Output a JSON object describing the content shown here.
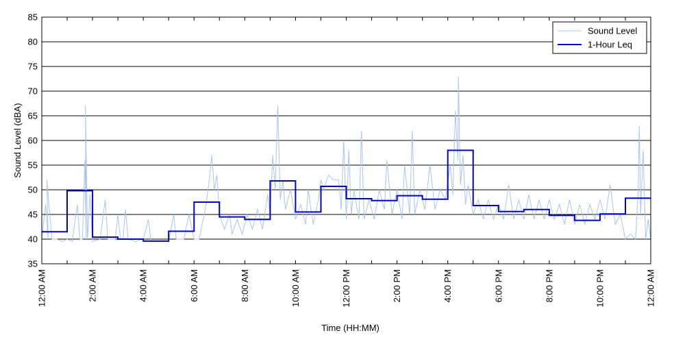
{
  "chart_data": {
    "type": "line",
    "title": "",
    "xlabel": "Time (HH:MM)",
    "ylabel": "Sound Level (dBA)",
    "xlim": [
      0,
      24
    ],
    "ylim": [
      35,
      85
    ],
    "yticks": [
      35,
      40,
      45,
      50,
      55,
      60,
      65,
      70,
      75,
      80,
      85
    ],
    "xticks": [
      {
        "x": 0,
        "label": "12:00 AM"
      },
      {
        "x": 2,
        "label": "2:00 AM"
      },
      {
        "x": 4,
        "label": "4:00 AM"
      },
      {
        "x": 6,
        "label": "6:00 AM"
      },
      {
        "x": 8,
        "label": "8:00 AM"
      },
      {
        "x": 10,
        "label": "10:00 AM"
      },
      {
        "x": 12,
        "label": "12:00 PM"
      },
      {
        "x": 14,
        "label": "2:00 PM"
      },
      {
        "x": 16,
        "label": "4:00 PM"
      },
      {
        "x": 18,
        "label": "6:00 PM"
      },
      {
        "x": 20,
        "label": "8:00 PM"
      },
      {
        "x": 22,
        "label": "10:00 PM"
      },
      {
        "x": 24,
        "label": "12:00 AM"
      }
    ],
    "grid": "horizontal",
    "legend_position": "top-right",
    "series": [
      {
        "name": "Sound Level",
        "color": "#a9c3f2",
        "type": "line",
        "approximate": true,
        "points": [
          [
            0,
            40
          ],
          [
            0.15,
            47
          ],
          [
            0.25,
            40
          ],
          [
            0.2,
            52
          ],
          [
            0.4,
            40
          ],
          [
            0.6,
            40
          ],
          [
            0.8,
            39.5
          ],
          [
            1.0,
            40
          ],
          [
            1.2,
            39.5
          ],
          [
            1.4,
            47
          ],
          [
            1.5,
            40
          ],
          [
            1.6,
            40
          ],
          [
            1.7,
            56
          ],
          [
            1.75,
            40
          ],
          [
            1.72,
            67
          ],
          [
            1.8,
            40
          ],
          [
            1.9,
            49
          ],
          [
            2.0,
            39.5
          ],
          [
            2.3,
            40
          ],
          [
            2.5,
            48
          ],
          [
            2.6,
            40
          ],
          [
            2.9,
            40
          ],
          [
            3.0,
            45
          ],
          [
            3.1,
            40
          ],
          [
            3.2,
            40
          ],
          [
            3.3,
            46
          ],
          [
            3.4,
            40
          ],
          [
            3.7,
            39.5
          ],
          [
            4.0,
            40
          ],
          [
            4.2,
            44
          ],
          [
            4.3,
            39.5
          ],
          [
            4.6,
            39.5
          ],
          [
            5.0,
            39.5
          ],
          [
            5.2,
            45
          ],
          [
            5.3,
            40
          ],
          [
            5.6,
            40
          ],
          [
            5.8,
            45
          ],
          [
            6.0,
            40
          ],
          [
            6.2,
            40
          ],
          [
            6.4,
            45
          ],
          [
            6.5,
            48
          ],
          [
            6.6,
            52
          ],
          [
            6.7,
            57
          ],
          [
            6.8,
            50
          ],
          [
            6.9,
            53
          ],
          [
            7.0,
            45
          ],
          [
            7.2,
            42
          ],
          [
            7.4,
            45
          ],
          [
            7.5,
            41
          ],
          [
            7.7,
            44
          ],
          [
            7.9,
            41
          ],
          [
            8.1,
            45
          ],
          [
            8.3,
            42
          ],
          [
            8.5,
            46
          ],
          [
            8.7,
            42
          ],
          [
            8.9,
            49
          ],
          [
            9.0,
            45
          ],
          [
            9.1,
            57
          ],
          [
            9.2,
            50
          ],
          [
            9.3,
            67
          ],
          [
            9.4,
            48
          ],
          [
            9.5,
            52
          ],
          [
            9.6,
            46
          ],
          [
            9.8,
            50
          ],
          [
            10.0,
            44
          ],
          [
            10.2,
            47
          ],
          [
            10.4,
            43
          ],
          [
            10.5,
            50
          ],
          [
            10.7,
            43
          ],
          [
            10.9,
            48
          ],
          [
            11.0,
            52
          ],
          [
            11.1,
            50
          ],
          [
            11.3,
            53
          ],
          [
            11.5,
            52
          ],
          [
            11.7,
            52
          ],
          [
            11.8,
            46
          ],
          [
            11.9,
            60
          ],
          [
            12.0,
            44
          ],
          [
            12.1,
            58
          ],
          [
            12.2,
            45
          ],
          [
            12.3,
            50
          ],
          [
            12.5,
            44
          ],
          [
            12.6,
            62
          ],
          [
            12.7,
            44
          ],
          [
            12.9,
            48
          ],
          [
            13.1,
            44
          ],
          [
            13.3,
            50
          ],
          [
            13.5,
            46
          ],
          [
            13.6,
            56
          ],
          [
            13.8,
            45
          ],
          [
            14.0,
            50
          ],
          [
            14.2,
            44
          ],
          [
            14.3,
            55
          ],
          [
            14.5,
            45
          ],
          [
            14.6,
            62
          ],
          [
            14.7,
            45
          ],
          [
            14.9,
            50
          ],
          [
            15.1,
            46
          ],
          [
            15.3,
            55
          ],
          [
            15.5,
            46
          ],
          [
            15.7,
            50
          ],
          [
            15.9,
            48
          ],
          [
            16.1,
            55
          ],
          [
            16.2,
            49
          ],
          [
            16.3,
            66
          ],
          [
            16.4,
            56
          ],
          [
            16.42,
            73
          ],
          [
            16.5,
            51
          ],
          [
            16.6,
            57
          ],
          [
            16.7,
            47
          ],
          [
            16.8,
            51
          ],
          [
            17.0,
            45
          ],
          [
            17.2,
            48
          ],
          [
            17.4,
            44
          ],
          [
            17.6,
            48
          ],
          [
            17.8,
            44
          ],
          [
            18.0,
            47
          ],
          [
            18.2,
            44
          ],
          [
            18.4,
            51
          ],
          [
            18.6,
            44
          ],
          [
            18.8,
            48
          ],
          [
            19.0,
            44
          ],
          [
            19.2,
            49
          ],
          [
            19.4,
            44
          ],
          [
            19.6,
            48
          ],
          [
            19.8,
            44
          ],
          [
            20.0,
            48
          ],
          [
            20.2,
            44
          ],
          [
            20.4,
            47
          ],
          [
            20.6,
            43
          ],
          [
            20.8,
            48
          ],
          [
            21.0,
            43
          ],
          [
            21.2,
            47
          ],
          [
            21.4,
            43
          ],
          [
            21.6,
            47
          ],
          [
            21.8,
            44
          ],
          [
            22.0,
            48
          ],
          [
            22.2,
            44
          ],
          [
            22.4,
            51
          ],
          [
            22.6,
            43
          ],
          [
            22.8,
            45
          ],
          [
            23.0,
            40
          ],
          [
            23.2,
            41
          ],
          [
            23.4,
            40
          ],
          [
            23.5,
            49
          ],
          [
            23.55,
            63
          ],
          [
            23.6,
            45
          ],
          [
            23.7,
            58
          ],
          [
            23.8,
            40
          ],
          [
            23.9,
            44
          ],
          [
            24.0,
            40
          ]
        ]
      },
      {
        "name": "1-Hour Leq",
        "color": "#0000cc",
        "type": "step",
        "x": [
          0,
          1,
          2,
          3,
          4,
          5,
          6,
          7,
          8,
          9,
          10,
          11,
          12,
          13,
          14,
          15,
          16,
          17,
          18,
          19,
          20,
          21,
          22,
          23
        ],
        "values": [
          41.5,
          49.8,
          40.4,
          40.0,
          39.6,
          41.6,
          47.5,
          44.5,
          44.0,
          51.8,
          45.5,
          50.7,
          48.2,
          47.8,
          48.8,
          48.1,
          58.0,
          46.8,
          45.6,
          46.0,
          44.8,
          43.8,
          45.1,
          48.3
        ]
      }
    ]
  }
}
